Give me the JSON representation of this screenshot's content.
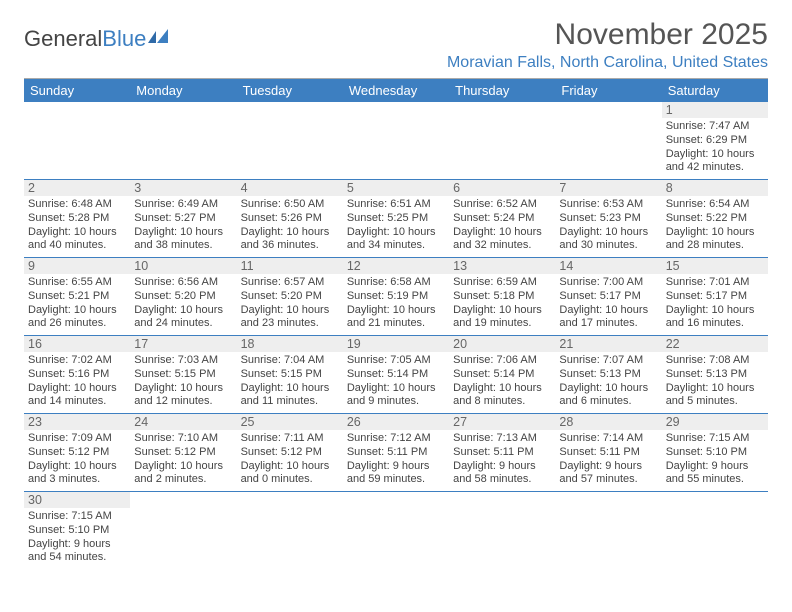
{
  "brand": {
    "part1": "General",
    "part2": "Blue"
  },
  "title": "November 2025",
  "location": "Moravian Falls, North Carolina, United States",
  "colors": {
    "accent": "#3d7fc1",
    "header_text": "#555",
    "cell_stripe": "#eeeeee"
  },
  "weekdays": [
    "Sunday",
    "Monday",
    "Tuesday",
    "Wednesday",
    "Thursday",
    "Friday",
    "Saturday"
  ],
  "days": [
    {
      "n": 1,
      "sunrise": "7:47 AM",
      "sunset": "6:29 PM",
      "daylight": "10 hours and 42 minutes."
    },
    {
      "n": 2,
      "sunrise": "6:48 AM",
      "sunset": "5:28 PM",
      "daylight": "10 hours and 40 minutes."
    },
    {
      "n": 3,
      "sunrise": "6:49 AM",
      "sunset": "5:27 PM",
      "daylight": "10 hours and 38 minutes."
    },
    {
      "n": 4,
      "sunrise": "6:50 AM",
      "sunset": "5:26 PM",
      "daylight": "10 hours and 36 minutes."
    },
    {
      "n": 5,
      "sunrise": "6:51 AM",
      "sunset": "5:25 PM",
      "daylight": "10 hours and 34 minutes."
    },
    {
      "n": 6,
      "sunrise": "6:52 AM",
      "sunset": "5:24 PM",
      "daylight": "10 hours and 32 minutes."
    },
    {
      "n": 7,
      "sunrise": "6:53 AM",
      "sunset": "5:23 PM",
      "daylight": "10 hours and 30 minutes."
    },
    {
      "n": 8,
      "sunrise": "6:54 AM",
      "sunset": "5:22 PM",
      "daylight": "10 hours and 28 minutes."
    },
    {
      "n": 9,
      "sunrise": "6:55 AM",
      "sunset": "5:21 PM",
      "daylight": "10 hours and 26 minutes."
    },
    {
      "n": 10,
      "sunrise": "6:56 AM",
      "sunset": "5:20 PM",
      "daylight": "10 hours and 24 minutes."
    },
    {
      "n": 11,
      "sunrise": "6:57 AM",
      "sunset": "5:20 PM",
      "daylight": "10 hours and 23 minutes."
    },
    {
      "n": 12,
      "sunrise": "6:58 AM",
      "sunset": "5:19 PM",
      "daylight": "10 hours and 21 minutes."
    },
    {
      "n": 13,
      "sunrise": "6:59 AM",
      "sunset": "5:18 PM",
      "daylight": "10 hours and 19 minutes."
    },
    {
      "n": 14,
      "sunrise": "7:00 AM",
      "sunset": "5:17 PM",
      "daylight": "10 hours and 17 minutes."
    },
    {
      "n": 15,
      "sunrise": "7:01 AM",
      "sunset": "5:17 PM",
      "daylight": "10 hours and 16 minutes."
    },
    {
      "n": 16,
      "sunrise": "7:02 AM",
      "sunset": "5:16 PM",
      "daylight": "10 hours and 14 minutes."
    },
    {
      "n": 17,
      "sunrise": "7:03 AM",
      "sunset": "5:15 PM",
      "daylight": "10 hours and 12 minutes."
    },
    {
      "n": 18,
      "sunrise": "7:04 AM",
      "sunset": "5:15 PM",
      "daylight": "10 hours and 11 minutes."
    },
    {
      "n": 19,
      "sunrise": "7:05 AM",
      "sunset": "5:14 PM",
      "daylight": "10 hours and 9 minutes."
    },
    {
      "n": 20,
      "sunrise": "7:06 AM",
      "sunset": "5:14 PM",
      "daylight": "10 hours and 8 minutes."
    },
    {
      "n": 21,
      "sunrise": "7:07 AM",
      "sunset": "5:13 PM",
      "daylight": "10 hours and 6 minutes."
    },
    {
      "n": 22,
      "sunrise": "7:08 AM",
      "sunset": "5:13 PM",
      "daylight": "10 hours and 5 minutes."
    },
    {
      "n": 23,
      "sunrise": "7:09 AM",
      "sunset": "5:12 PM",
      "daylight": "10 hours and 3 minutes."
    },
    {
      "n": 24,
      "sunrise": "7:10 AM",
      "sunset": "5:12 PM",
      "daylight": "10 hours and 2 minutes."
    },
    {
      "n": 25,
      "sunrise": "7:11 AM",
      "sunset": "5:12 PM",
      "daylight": "10 hours and 0 minutes."
    },
    {
      "n": 26,
      "sunrise": "7:12 AM",
      "sunset": "5:11 PM",
      "daylight": "9 hours and 59 minutes."
    },
    {
      "n": 27,
      "sunrise": "7:13 AM",
      "sunset": "5:11 PM",
      "daylight": "9 hours and 58 minutes."
    },
    {
      "n": 28,
      "sunrise": "7:14 AM",
      "sunset": "5:11 PM",
      "daylight": "9 hours and 57 minutes."
    },
    {
      "n": 29,
      "sunrise": "7:15 AM",
      "sunset": "5:10 PM",
      "daylight": "9 hours and 55 minutes."
    },
    {
      "n": 30,
      "sunrise": "7:15 AM",
      "sunset": "5:10 PM",
      "daylight": "9 hours and 54 minutes."
    }
  ],
  "labels": {
    "sunrise": "Sunrise:",
    "sunset": "Sunset:",
    "daylight": "Daylight:"
  },
  "layout": {
    "first_weekday_index": 6,
    "total_cells": 42
  }
}
